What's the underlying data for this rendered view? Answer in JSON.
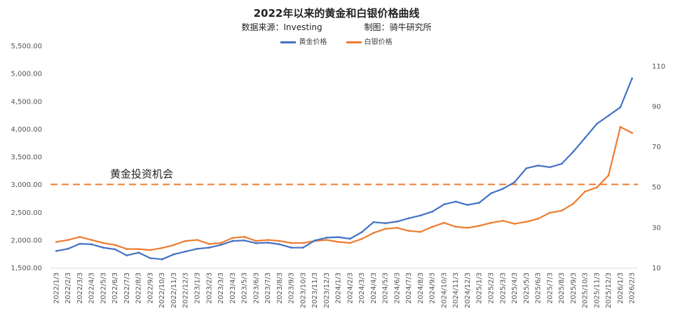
{
  "chart_data": {
    "type": "line",
    "title": "2022年以来的黄金和白银价格曲线",
    "subtitle_source": "数据来源：Investing",
    "subtitle_maker": "制图：骑牛研究所",
    "legend_placement": "top-center",
    "grid": false,
    "x": [
      "2022/1/3",
      "2022/2/3",
      "2022/3/3",
      "2022/4/3",
      "2022/5/3",
      "2022/6/3",
      "2022/7/3",
      "2022/8/3",
      "2022/9/3",
      "2022/10/3",
      "2022/11/3",
      "2022/12/3",
      "2023/1/3",
      "2023/2/3",
      "2023/3/3",
      "2023/4/3",
      "2023/5/3",
      "2023/6/3",
      "2023/7/3",
      "2023/8/3",
      "2023/9/3",
      "2023/10/3",
      "2023/11/3",
      "2023/12/3",
      "2024/1/3",
      "2024/2/3",
      "2024/3/3",
      "2024/4/3",
      "2024/5/3",
      "2024/6/3",
      "2024/7/3",
      "2024/8/3",
      "2024/9/3",
      "2024/10/3",
      "2024/11/3",
      "2024/12/3",
      "2025/1/3",
      "2025/2/3",
      "2025/3/3",
      "2025/4/3",
      "2025/5/3",
      "2025/6/3",
      "2025/7/3",
      "2025/8/3",
      "2025/9/3",
      "2025/10/3",
      "2025/11/3",
      "2025/12/3",
      "2026/1/3",
      "2026/2/3"
    ],
    "y_left": {
      "ticks": [
        "1,500.00",
        "2,000.00",
        "2,500.00",
        "3,000.00",
        "3,500.00",
        "4,000.00",
        "4,500.00",
        "5,000.00",
        "5,500.00"
      ],
      "min": 1500,
      "max": 5500
    },
    "y_right": {
      "ticks": [
        "10",
        "30",
        "50",
        "70",
        "90",
        "110"
      ],
      "min": 10,
      "max": 120
    },
    "series": [
      {
        "name": "黄金价格",
        "axis": "left",
        "color": "#4472C4",
        "values": [
          1810,
          1850,
          1940,
          1930,
          1870,
          1840,
          1730,
          1780,
          1680,
          1660,
          1750,
          1800,
          1850,
          1870,
          1920,
          1990,
          2000,
          1950,
          1960,
          1930,
          1870,
          1870,
          2000,
          2050,
          2060,
          2030,
          2150,
          2330,
          2310,
          2340,
          2400,
          2450,
          2520,
          2650,
          2700,
          2640,
          2680,
          2850,
          2930,
          3050,
          3300,
          3350,
          3320,
          3380,
          3600,
          3850,
          4100,
          4250,
          4400,
          4920
        ]
      },
      {
        "name": "白银价格",
        "axis": "right",
        "color": "#ED7D31",
        "values": [
          23.0,
          24.0,
          25.5,
          24.0,
          22.5,
          21.5,
          19.5,
          19.5,
          19.0,
          20.0,
          21.5,
          23.5,
          24.0,
          22.0,
          22.5,
          25.0,
          25.5,
          23.5,
          24.0,
          23.5,
          22.5,
          22.5,
          23.5,
          24.0,
          23.0,
          22.5,
          24.5,
          27.5,
          29.5,
          30.0,
          28.5,
          28.0,
          30.5,
          32.5,
          30.5,
          30.0,
          31.0,
          32.5,
          33.5,
          32.0,
          33.0,
          34.5,
          37.5,
          38.5,
          42.0,
          48.0,
          50.0,
          56.0,
          80.0,
          77.0
        ]
      },
      {
        "name": "",
        "axis": "left",
        "style": "dashed",
        "color": "#ED7D31",
        "values_constant": 3010
      }
    ],
    "annotations": [
      {
        "text": "黄金投资机会"
      }
    ]
  }
}
